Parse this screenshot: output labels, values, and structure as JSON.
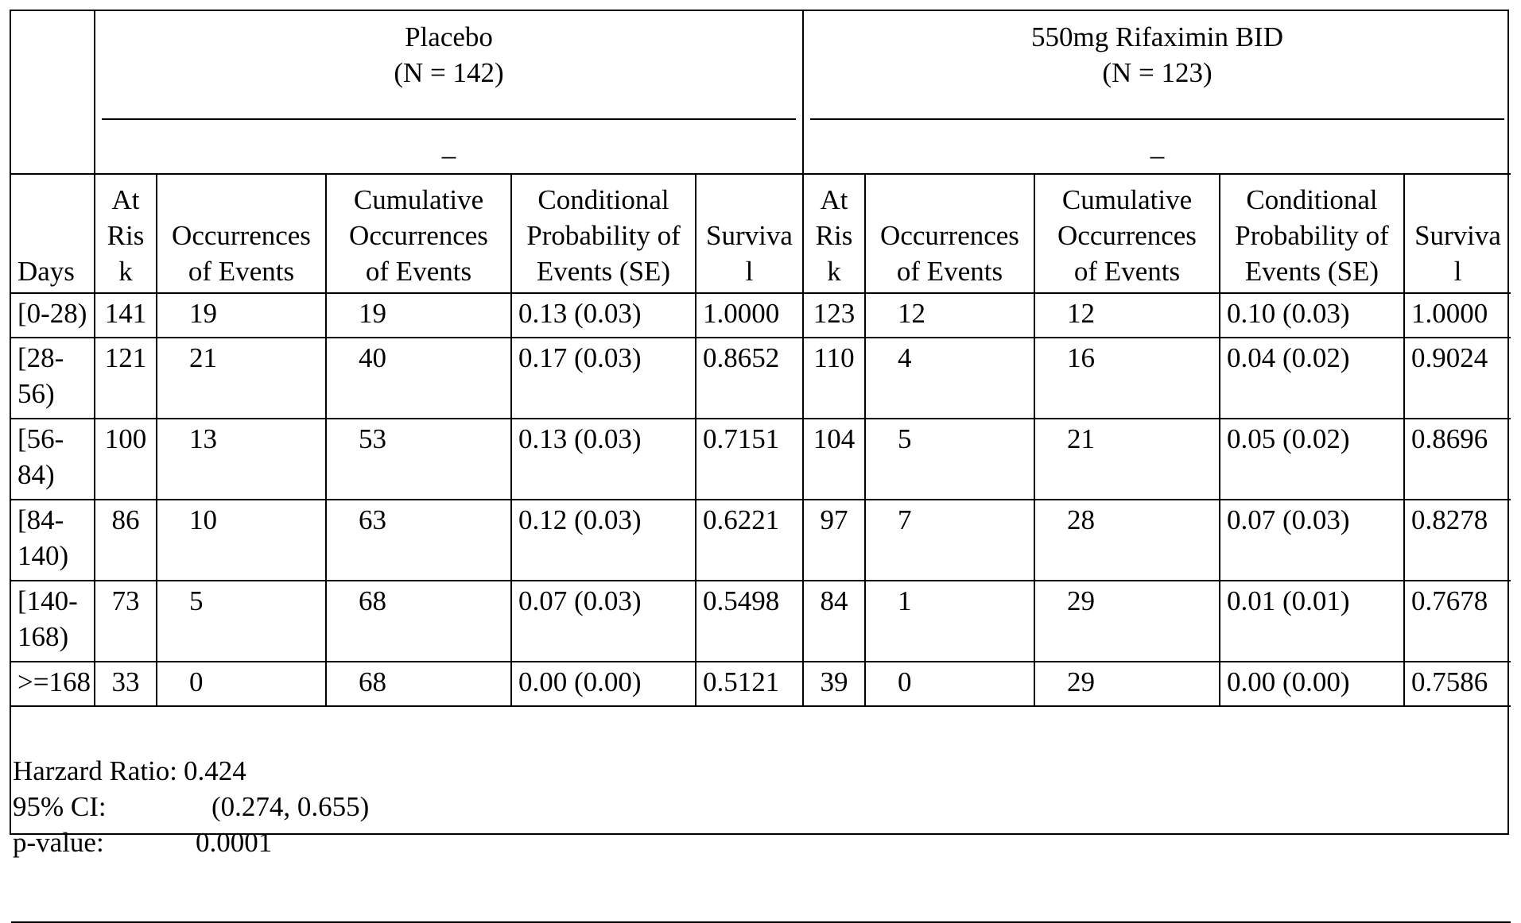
{
  "groups": [
    {
      "name": "Placebo",
      "n": "(N = 142)",
      "underline_mark": "_"
    },
    {
      "name": "550mg Rifaximin BID",
      "n": "(N = 123)",
      "underline_mark": "_"
    }
  ],
  "columns": {
    "days": "Days",
    "at_risk": [
      "At",
      "Ris",
      "k"
    ],
    "occurrences": [
      "Occurrences",
      "of Events"
    ],
    "cumulative": [
      "Cumulative",
      "Occurrences",
      "of Events"
    ],
    "conditional": [
      "Conditional",
      "Probability of",
      "Events (SE)"
    ],
    "survival": [
      "Surviva",
      "l"
    ]
  },
  "rows": [
    {
      "days": [
        "[0-28)"
      ],
      "p": [
        "141",
        "19",
        "19",
        "0.13 (0.03)",
        "1.0000"
      ],
      "r": [
        "123",
        "12",
        "12",
        "0.10 (0.03)",
        "1.0000"
      ]
    },
    {
      "days": [
        "[28-",
        "56)"
      ],
      "p": [
        "121",
        "21",
        "40",
        "0.17 (0.03)",
        "0.8652"
      ],
      "r": [
        "110",
        "4",
        "16",
        "0.04 (0.02)",
        "0.9024"
      ]
    },
    {
      "days": [
        "[56-",
        "84)"
      ],
      "p": [
        "100",
        "13",
        "53",
        "0.13 (0.03)",
        "0.7151"
      ],
      "r": [
        "104",
        "5",
        "21",
        "0.05 (0.02)",
        "0.8696"
      ]
    },
    {
      "days": [
        "[84-",
        "140)"
      ],
      "p": [
        "86",
        "10",
        "63",
        "0.12 (0.03)",
        "0.6221"
      ],
      "r": [
        "97",
        "7",
        "28",
        "0.07 (0.03)",
        "0.8278"
      ]
    },
    {
      "days": [
        "[140-",
        "168)"
      ],
      "p": [
        "73",
        "5",
        "68",
        "0.07 (0.03)",
        "0.5498"
      ],
      "r": [
        "84",
        "1",
        "29",
        "0.01 (0.01)",
        "0.7678"
      ]
    },
    {
      "days": [
        ">=168"
      ],
      "p": [
        "33",
        "0",
        "68",
        "0.00 (0.00)",
        "0.5121"
      ],
      "r": [
        "39",
        "0",
        "29",
        "0.00 (0.00)",
        "0.7586"
      ]
    }
  ],
  "stats": [
    {
      "label": "Harzard Ratio:",
      "value": "0.424"
    },
    {
      "label": "95% CI:",
      "value": "(0.274, 0.655)"
    },
    {
      "label": "p-value:",
      "value": "0.0001"
    }
  ]
}
